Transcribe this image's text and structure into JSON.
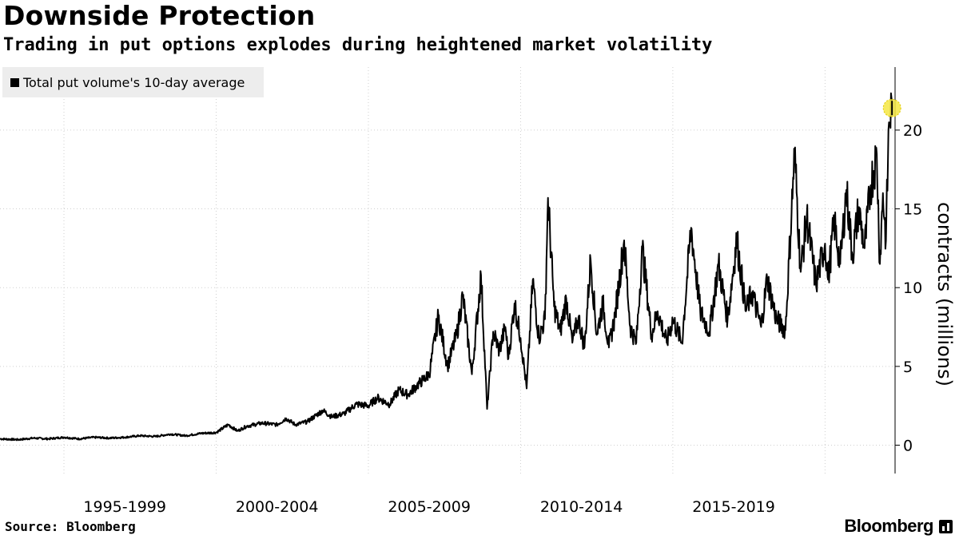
{
  "header": {
    "title": "Downside Protection",
    "subtitle": "Trading in put options explodes during heightened market volatility"
  },
  "legend": {
    "label": "Total put volume's 10-day average",
    "color": "#000000"
  },
  "footer": {
    "source": "Source: Bloomberg",
    "brand": "Bloomberg"
  },
  "chart_data": {
    "type": "line",
    "title": "Downside Protection",
    "subtitle": "Trading in put options explodes during heightened market volatility",
    "ylabel": "contracts (millions)",
    "y_axis_side": "right",
    "ylim": [
      -1.8,
      24
    ],
    "yticks": [
      0,
      5,
      10,
      15,
      20
    ],
    "xlim": [
      1990.9,
      2020.3
    ],
    "x_labels": [
      "1995-1999",
      "2000-2004",
      "2005-2009",
      "2010-2014",
      "2015-2019"
    ],
    "x_label_positions": [
      1995.0,
      2000.0,
      2005.0,
      2010.0,
      2015.0
    ],
    "x_gridlines": [
      1993.0,
      1998.0,
      2003.0,
      2008.0,
      2013.0,
      2018.0
    ],
    "grid": true,
    "legend_position": "top-left",
    "highlight": {
      "x": 2020.2,
      "y": 21.4,
      "color": "#f5e642"
    },
    "series": [
      {
        "name": "Total put volume's 10-day average",
        "color": "#000000",
        "x": [
          1990.9,
          1991.5,
          1992.0,
          1992.5,
          1993.0,
          1993.5,
          1994.0,
          1994.5,
          1995.0,
          1995.5,
          1996.0,
          1996.5,
          1997.0,
          1997.5,
          1998.0,
          1998.4,
          1998.7,
          1999.0,
          1999.5,
          2000.0,
          2000.3,
          2000.6,
          2001.0,
          2001.5,
          2001.8,
          2002.2,
          2002.6,
          2003.0,
          2003.3,
          2003.7,
          2004.0,
          2004.3,
          2004.6,
          2005.0,
          2005.3,
          2005.6,
          2005.9,
          2006.1,
          2006.4,
          2006.7,
          2006.9,
          2007.1,
          2007.3,
          2007.5,
          2007.6,
          2007.8,
          2008.0,
          2008.2,
          2008.4,
          2008.6,
          2008.8,
          2008.9,
          2009.1,
          2009.3,
          2009.5,
          2009.7,
          2009.9,
          2010.1,
          2010.3,
          2010.5,
          2010.7,
          2010.9,
          2011.1,
          2011.4,
          2011.6,
          2011.8,
          2012.0,
          2012.3,
          2012.5,
          2012.8,
          2013.0,
          2013.3,
          2013.6,
          2013.9,
          2014.2,
          2014.5,
          2014.8,
          2015.1,
          2015.4,
          2015.6,
          2015.9,
          2016.1,
          2016.4,
          2016.7,
          2017.0,
          2017.2,
          2017.4,
          2017.7,
          2018.0,
          2018.1,
          2018.3,
          2018.5,
          2018.7,
          2018.9,
          2019.1,
          2019.3,
          2019.5,
          2019.7,
          2019.8,
          2019.9,
          2020.0,
          2020.1,
          2020.2
        ],
        "y": [
          0.4,
          0.35,
          0.45,
          0.4,
          0.5,
          0.4,
          0.5,
          0.45,
          0.5,
          0.6,
          0.55,
          0.7,
          0.6,
          0.75,
          0.8,
          1.3,
          0.9,
          1.2,
          1.4,
          1.3,
          1.7,
          1.3,
          1.5,
          2.2,
          1.8,
          2.0,
          2.6,
          2.5,
          3.0,
          2.6,
          3.5,
          3.2,
          3.8,
          4.5,
          8.2,
          5.0,
          7.0,
          9.5,
          4.5,
          10.8,
          2.3,
          7.2,
          6.0,
          7.5,
          5.5,
          9.0,
          6.8,
          3.6,
          10.5,
          6.8,
          8.0,
          15.7,
          8.8,
          7.2,
          9.3,
          6.5,
          8.1,
          6.2,
          11.8,
          7.0,
          9.0,
          6.2,
          8.2,
          13.0,
          7.5,
          6.5,
          12.5,
          7.0,
          8.5,
          6.5,
          8.0,
          6.5,
          13.8,
          8.5,
          7.2,
          11.5,
          8.0,
          13.1,
          8.5,
          9.7,
          7.5,
          10.6,
          8.0,
          7.3,
          18.6,
          11.0,
          14.5,
          10.2,
          12.8,
          10.5,
          14.2,
          11.5,
          16.2,
          12.0,
          15.0,
          12.5,
          16.5,
          18.5,
          11.5,
          16.0,
          13.0,
          20.5,
          21.4
        ]
      }
    ]
  }
}
